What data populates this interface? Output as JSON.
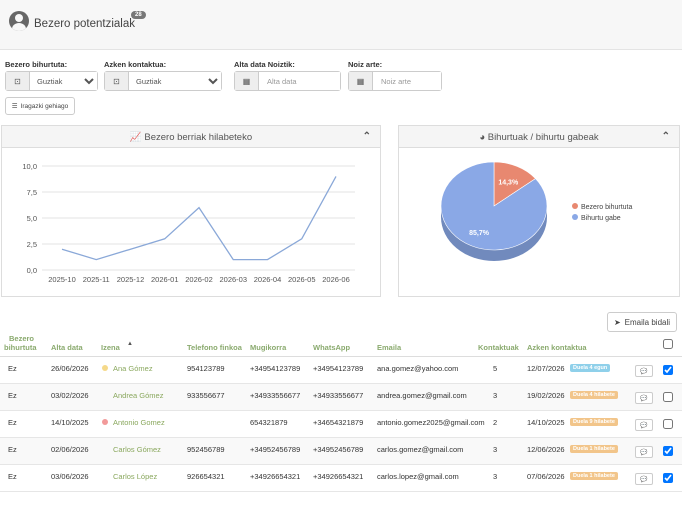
{
  "header": {
    "title": "Bezero potentzialak",
    "count": "28"
  },
  "filters": {
    "customer_converted": {
      "label": "Bezero bihurtuta:",
      "value": "Guztiak",
      "options": [
        "Guztiak"
      ]
    },
    "last_contact": {
      "label": "Azken kontaktua:",
      "value": "Guztiak",
      "options": [
        "Guztiak"
      ]
    },
    "date_from": {
      "label": "Alta data Noiztik:",
      "placeholder": "Alta data"
    },
    "date_to": {
      "label": "Noiz arte:",
      "placeholder": "Noiz arte"
    },
    "more_filters": "Iragazki gehiago"
  },
  "line_panel": {
    "title": "Bezero berriak hilabeteko"
  },
  "pie_panel": {
    "title": "Bihurtuak / bihurtu gabeak"
  },
  "chart_data": [
    {
      "type": "line",
      "title": "Bezero berriak hilabeteko",
      "categories": [
        "2025-10",
        "2025-11",
        "2025-12",
        "2026-01",
        "2026-02",
        "2026-03",
        "2026-04",
        "2026-05",
        "2026-06"
      ],
      "series": [
        {
          "values": [
            2,
            1,
            2,
            3,
            6,
            1,
            1,
            3,
            9
          ]
        }
      ],
      "ylim": [
        0,
        10
      ],
      "yticks": [
        "0,0",
        "2,5",
        "5,0",
        "7,5",
        "10,0"
      ],
      "grid": true,
      "colors": {
        "line": "#8aa8d8"
      }
    },
    {
      "type": "pie",
      "title": "Bihurtuak / bihurtu gabeak",
      "slices": [
        {
          "name": "Bezero bihurtuta",
          "value": 14.3,
          "label": "14,3%",
          "color": "#e88870"
        },
        {
          "name": "Bihurtu gabe",
          "value": 85.7,
          "label": "85,7%",
          "color": "#8aa8e6"
        }
      ],
      "legend": "right"
    }
  ],
  "actions": {
    "send_email": "Emaila bidali"
  },
  "table": {
    "headers": {
      "converted_1": "Bezero",
      "converted_2": "bihurtuta",
      "date": "Alta data",
      "name": "Izena",
      "sort_indicator": "▲",
      "landline": "Telefono finkoa",
      "mobile": "Mugikorra",
      "whatsapp": "WhatsApp",
      "email": "Emaila",
      "contacted": "Kontaktuak",
      "last_contact": "Azken kontaktua"
    },
    "rows": [
      {
        "converted": "Ez",
        "date": "26/06/2026",
        "name": "Ana Gómez",
        "dot": "#f5d98a",
        "landline": "954123789",
        "mobile": "+34954123789",
        "whatsapp": "+34954123789",
        "email": "ana.gomez@yahoo.com",
        "contacted": "5",
        "last_contact": "12/07/2026",
        "tag": "Duela 4 egun",
        "tag_color": "#8fd0ea",
        "checked": true
      },
      {
        "converted": "Ez",
        "date": "03/02/2026",
        "name": "Andrea Gómez",
        "dot": "",
        "landline": "933556677",
        "mobile": "+34933556677",
        "whatsapp": "+34933556677",
        "email": "andrea.gomez@gmail.com",
        "contacted": "3",
        "last_contact": "19/02/2026",
        "tag": "Duela 4 hilabete",
        "tag_color": "#f2c58a",
        "checked": false
      },
      {
        "converted": "Ez",
        "date": "14/10/2025",
        "name": "Antonio Gomez",
        "dot": "#f29a9a",
        "landline": "",
        "mobile": "654321879",
        "whatsapp": "+34654321879",
        "email": "antonio.gomez2025@gmail.com",
        "contacted": "2",
        "last_contact": "14/10/2025",
        "tag": "Duela 9 hilabete",
        "tag_color": "#f2c58a",
        "checked": false
      },
      {
        "converted": "Ez",
        "date": "02/06/2026",
        "name": "Carlos Gómez",
        "dot": "",
        "landline": "952456789",
        "mobile": "+34952456789",
        "whatsapp": "+34952456789",
        "email": "carlos.gomez@gmail.com",
        "contacted": "3",
        "last_contact": "12/06/2026",
        "tag": "Duela 1 hilabete",
        "tag_color": "#f2c58a",
        "checked": true
      },
      {
        "converted": "Ez",
        "date": "03/06/2026",
        "name": "Carlos López",
        "dot": "",
        "landline": "926654321",
        "mobile": "+34926654321",
        "whatsapp": "+34926654321",
        "email": "carlos.lopez@gmail.com",
        "contacted": "3",
        "last_contact": "07/06/2026",
        "tag": "Duela 1 hilabete",
        "tag_color": "#f2c58a",
        "checked": true
      }
    ]
  }
}
